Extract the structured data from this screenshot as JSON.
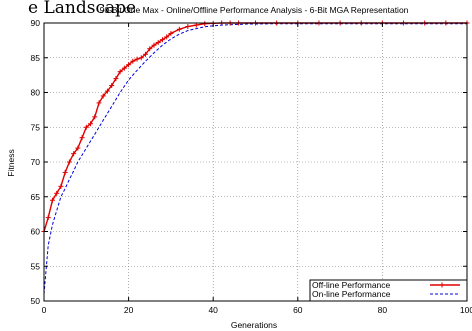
{
  "overlap_text": "e Landscape",
  "chart_data": {
    "type": "line",
    "title": "90-Bit One Max - Online/Offline Performance Analysis - 6-Bit MGA Representation",
    "xlabel": "Generations",
    "ylabel": "Fitness",
    "xlim": [
      0,
      100
    ],
    "ylim": [
      50,
      90
    ],
    "xticks": [
      0,
      20,
      40,
      60,
      80,
      100
    ],
    "yticks": [
      50,
      55,
      60,
      65,
      70,
      75,
      80,
      85,
      90
    ],
    "x_tick_labels": [
      "0",
      "20",
      "40",
      "60",
      "80",
      "100"
    ],
    "y_tick_labels": [
      "50",
      "55",
      "60",
      "65",
      "70",
      "75",
      "80",
      "85",
      "90"
    ],
    "grid": true,
    "legend_position": "bottom-right",
    "series": [
      {
        "name": "Off-line Performance",
        "color": "#e00000",
        "style": "solid-with-plus-markers",
        "x": [
          0,
          1,
          2,
          3,
          4,
          5,
          6,
          7,
          8,
          9,
          10,
          11,
          12,
          13,
          14,
          15,
          16,
          17,
          18,
          19,
          20,
          21,
          22,
          23,
          24,
          25,
          26,
          27,
          28,
          29,
          30,
          32,
          34,
          36,
          38,
          40,
          42,
          44,
          46,
          50,
          55,
          60,
          65,
          70,
          75,
          80,
          85,
          90,
          95,
          100
        ],
        "y": [
          60,
          62,
          64.5,
          65.5,
          66.5,
          68.5,
          70,
          71.2,
          72,
          73.5,
          75,
          75.5,
          76.5,
          78.5,
          79.5,
          80.2,
          81,
          82,
          83,
          83.5,
          84,
          84.5,
          84.8,
          85,
          85.5,
          86.3,
          86.8,
          87.2,
          87.6,
          88,
          88.5,
          89.1,
          89.5,
          89.7,
          89.9,
          89.95,
          90,
          90,
          90,
          90,
          90,
          90,
          90,
          90,
          90,
          90,
          90,
          90,
          90,
          90
        ]
      },
      {
        "name": "On-line Performance",
        "color": "#0000dd",
        "style": "dashed",
        "x": [
          0,
          1,
          2,
          3,
          4,
          5,
          6,
          7,
          8,
          9,
          10,
          12,
          14,
          16,
          18,
          20,
          22,
          24,
          26,
          28,
          30,
          32,
          34,
          36,
          38,
          40,
          42,
          44,
          46,
          48,
          50,
          55,
          60,
          65,
          70,
          75,
          80,
          85,
          90,
          95,
          100
        ],
        "y": [
          51,
          58,
          61,
          63,
          65,
          66.2,
          67.5,
          68.7,
          70,
          71,
          72,
          74,
          76,
          78,
          80,
          81.8,
          83.2,
          84.5,
          85.7,
          86.8,
          87.7,
          88.4,
          88.9,
          89.2,
          89.45,
          89.6,
          89.7,
          89.75,
          89.8,
          89.85,
          89.85,
          89.9,
          89.9,
          89.9,
          89.9,
          89.9,
          89.9,
          89.9,
          89.9,
          89.9,
          89.9
        ]
      }
    ]
  }
}
